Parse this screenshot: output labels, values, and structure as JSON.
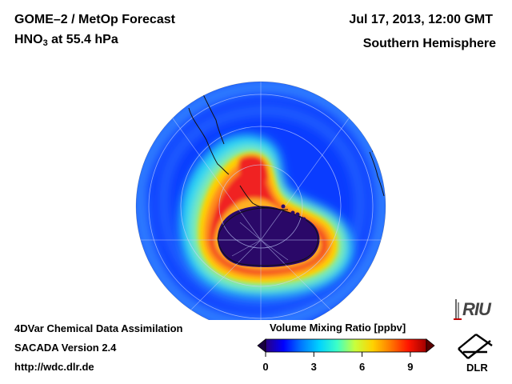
{
  "header": {
    "title_line1": "GOME–2 / MetOp Forecast",
    "species_prefix": "HNO",
    "species_subscript": "3",
    "species_suffix": " at 55.4 hPa",
    "datetime": "Jul 17, 2013, 12:00 GMT",
    "hemisphere": "Southern Hemisphere"
  },
  "footer": {
    "line1": "4DVar Chemical Data Assimilation",
    "line2": "SACADA Version 2.4",
    "line3": "http://wdc.dlr.de"
  },
  "colorbar": {
    "title": "Volume Mixing Ratio [ppbv]",
    "tick_labels": [
      "0",
      "3",
      "6",
      "9"
    ],
    "tick_values": [
      0,
      3,
      6,
      9
    ],
    "range": [
      0,
      10
    ],
    "colors": [
      "#2a0080",
      "#0000ff",
      "#0078ff",
      "#00d2ff",
      "#3cffc8",
      "#c8ff3c",
      "#ffd200",
      "#ff7800",
      "#ff1400",
      "#a00000"
    ]
  },
  "logos": {
    "riu": "RIU",
    "dlr": "DLR"
  },
  "map": {
    "projection": "orthographic-south-polar",
    "field": "HNO3 volume mixing ratio",
    "colors": {
      "background": "#0a3cff",
      "outer_ring": "#2a7cff",
      "cyan": "#2cd6f4",
      "green": "#8cf090",
      "yellow": "#ffd200",
      "orange": "#ff8a1a",
      "red": "#f02020",
      "vortex": "#2a0868",
      "coastline": "#111111",
      "grid": "#c8d4ff"
    }
  }
}
